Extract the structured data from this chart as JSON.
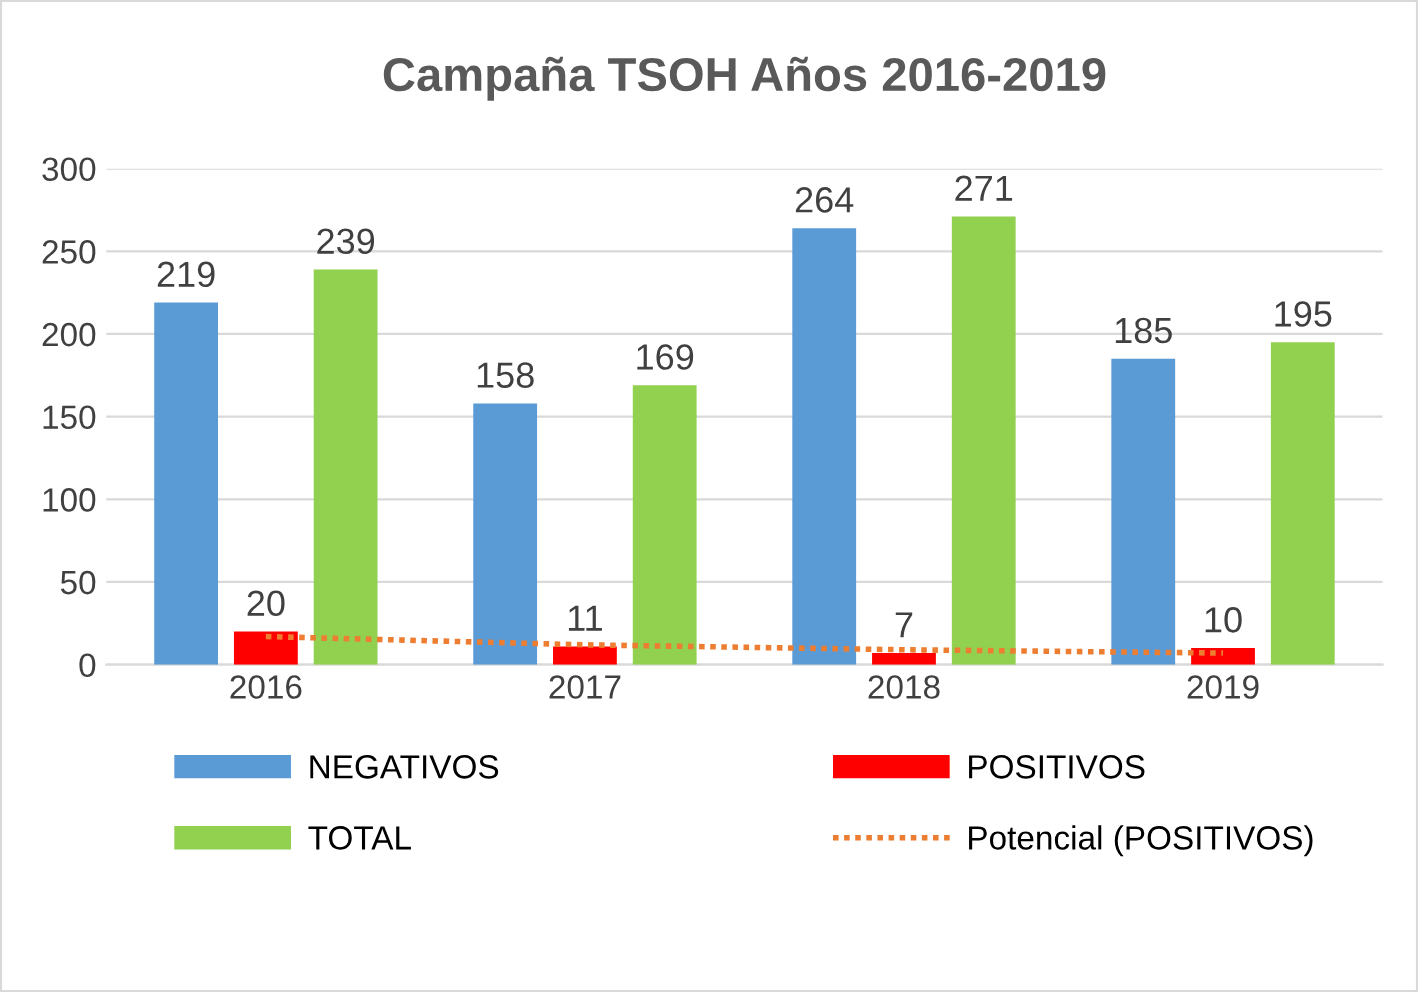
{
  "chart_data": {
    "type": "bar",
    "title": "Campaña TSOH Años 2016-2019",
    "categories": [
      "2016",
      "2017",
      "2018",
      "2019"
    ],
    "series": [
      {
        "name": "NEGATIVOS",
        "color": "#5b9bd5",
        "values": [
          219,
          158,
          264,
          185
        ],
        "value_labels": [
          "219",
          "158",
          "264",
          "185"
        ]
      },
      {
        "name": "POSITIVOS",
        "color": "#ff0000",
        "values": [
          20,
          11,
          7,
          10
        ],
        "value_labels": [
          "20",
          "11",
          "7",
          "10"
        ]
      },
      {
        "name": "TOTAL",
        "color": "#92d050",
        "values": [
          239,
          169,
          271,
          195
        ],
        "value_labels": [
          "239",
          "169",
          "271",
          "195"
        ]
      },
      {
        "name": "Potencial (POSITIVOS)",
        "type": "line",
        "line_style": "dotted",
        "color": "#ed7d31",
        "values": [
          17,
          12,
          9,
          7
        ]
      }
    ],
    "ylim": [
      0,
      300
    ],
    "yticks": [
      0,
      50,
      100,
      150,
      200,
      250,
      300
    ],
    "grid": "y",
    "legend": "bottom"
  }
}
